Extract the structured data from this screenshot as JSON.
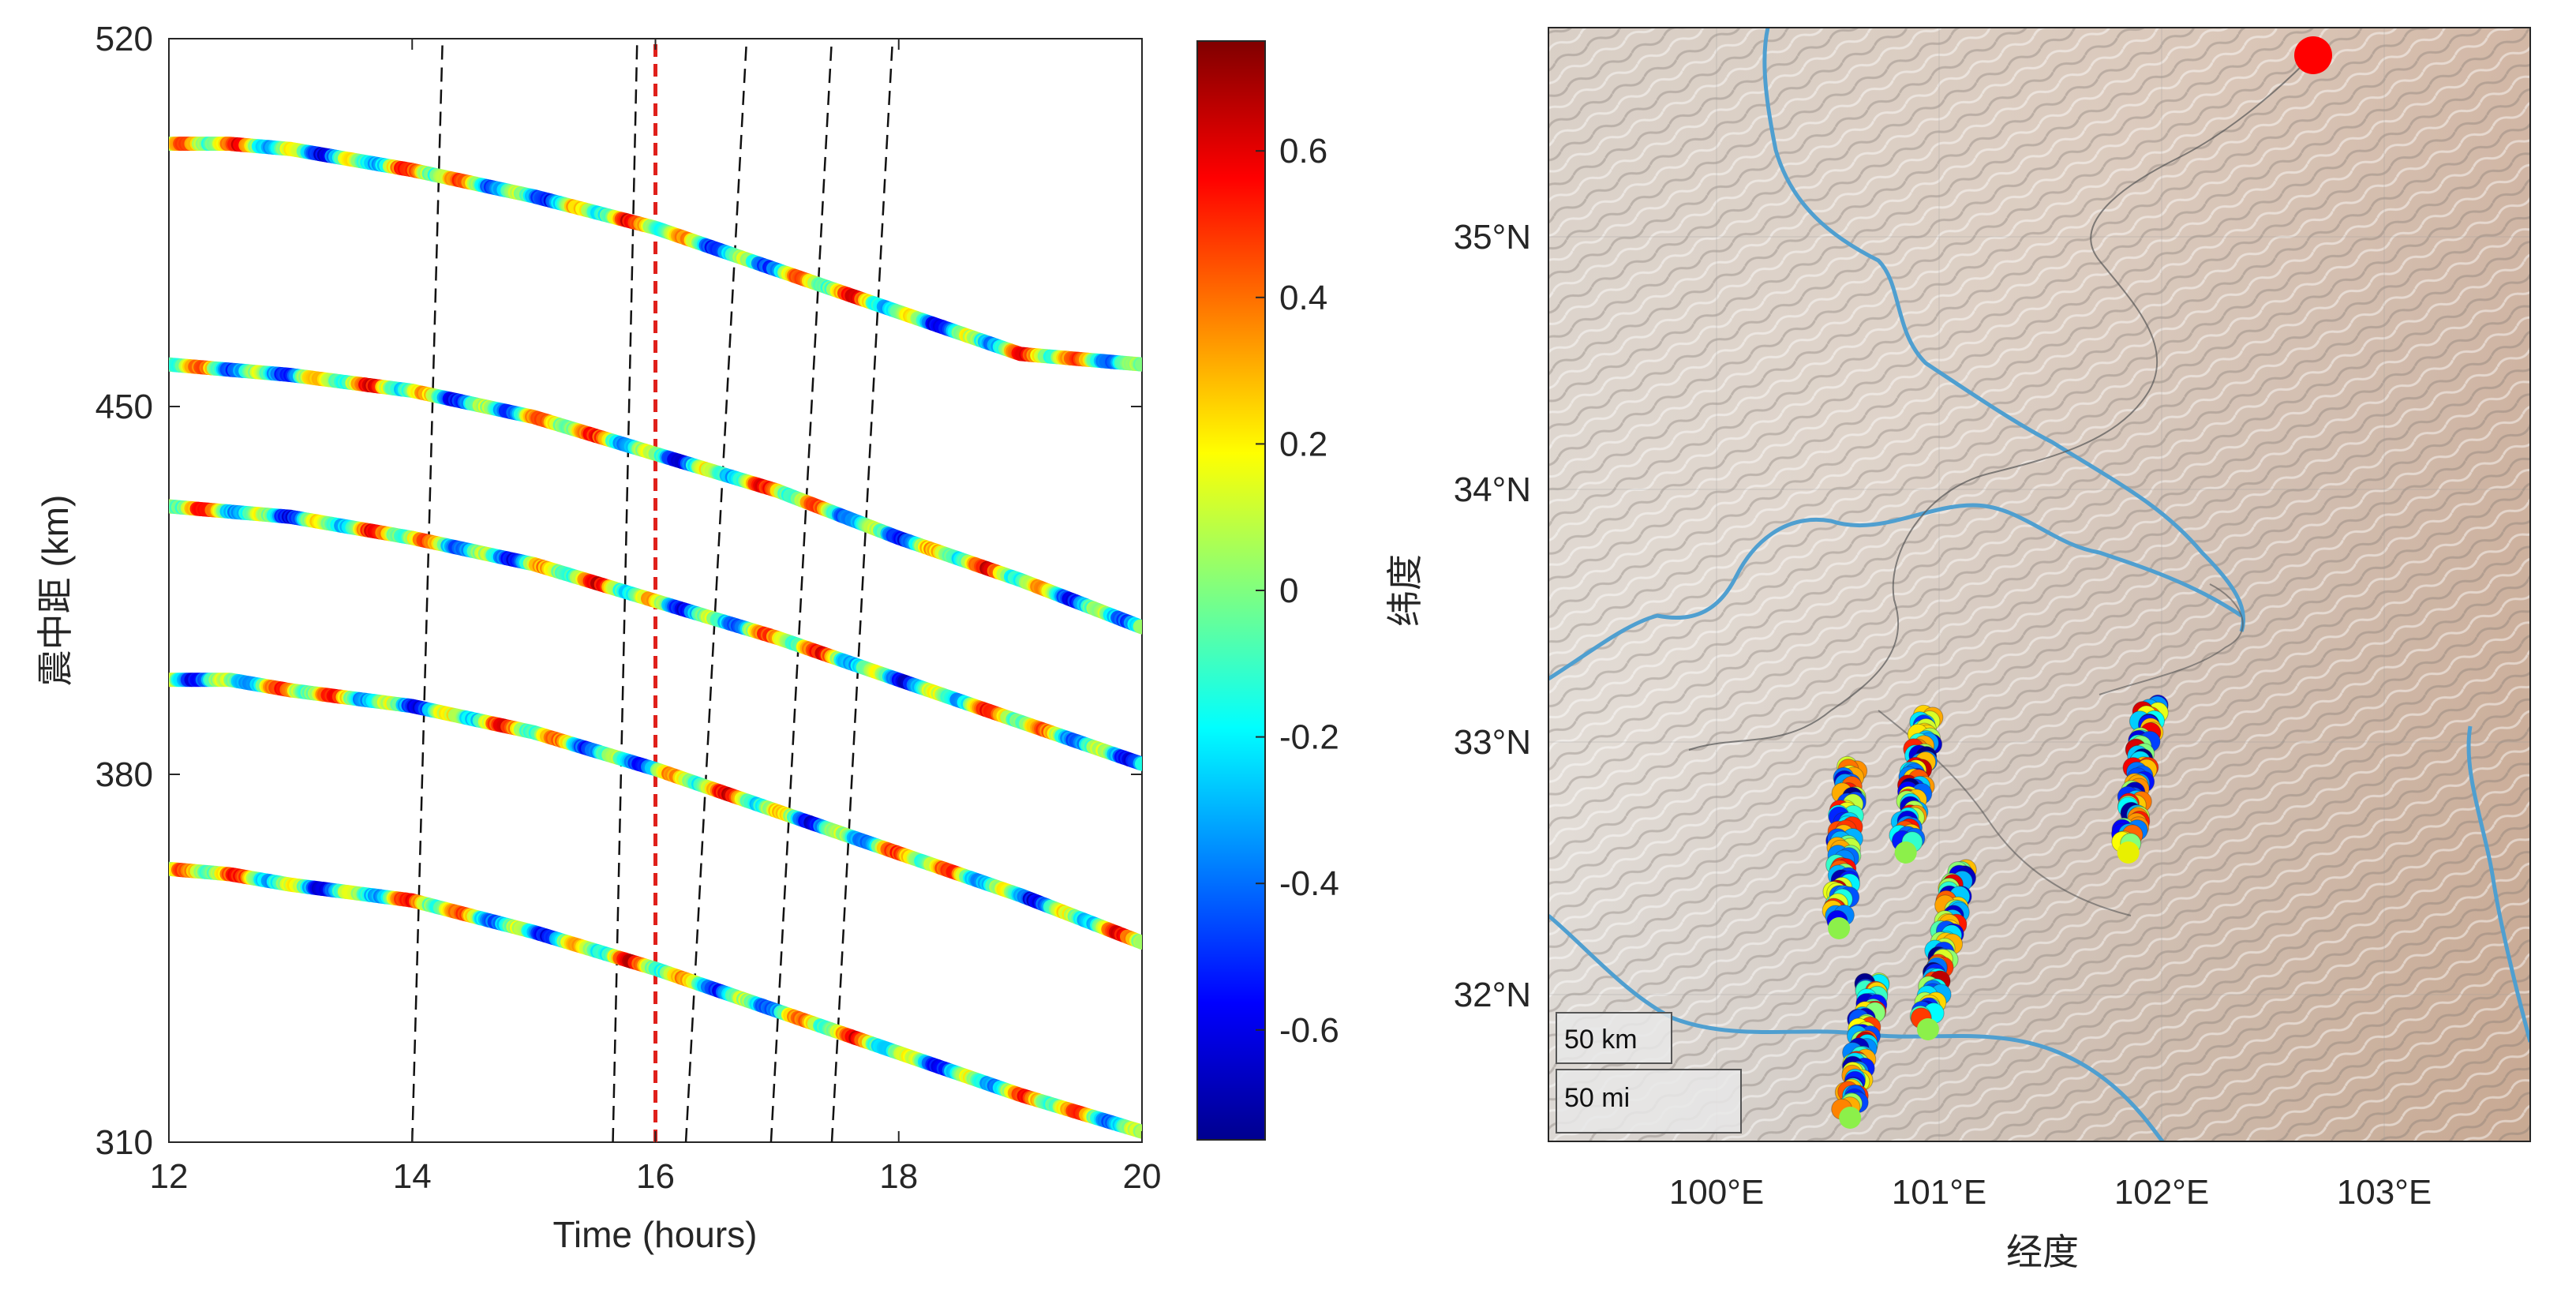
{
  "chart_data": [
    {
      "type": "scatter",
      "xlabel": "Time (hours)",
      "ylabel": "震中距 (km)",
      "xlim": [
        12,
        20
      ],
      "ylim": [
        310,
        520
      ],
      "xticks": [
        12,
        14,
        16,
        18,
        20
      ],
      "yticks": [
        310,
        380,
        450,
        520
      ],
      "colorscale": "jet",
      "clim": [
        -0.75,
        0.75
      ],
      "colorbar_ticks": [
        0.6,
        0.4,
        0.2,
        0,
        -0.2,
        -0.4,
        -0.6
      ],
      "series": [
        {
          "x": [
            12,
            12.5,
            13,
            14,
            15,
            16,
            17,
            18,
            19,
            20
          ],
          "y": [
            500,
            500,
            499,
            495,
            490,
            484,
            476,
            468,
            460,
            458
          ]
        },
        {
          "x": [
            12,
            12.5,
            13,
            14,
            15,
            16,
            17,
            18,
            19,
            20
          ],
          "y": [
            458,
            457,
            456,
            453,
            448,
            441,
            434,
            425,
            417,
            408
          ]
        },
        {
          "x": [
            12,
            12.5,
            13,
            14,
            15,
            16,
            17,
            18,
            19,
            20
          ],
          "y": [
            431,
            430,
            429,
            425,
            420,
            413,
            406,
            398,
            390,
            382
          ]
        },
        {
          "x": [
            12,
            12.5,
            13,
            14,
            15,
            16,
            17,
            18,
            19,
            20
          ],
          "y": [
            398,
            398,
            396,
            393,
            388,
            381,
            373,
            365,
            357,
            348
          ]
        },
        {
          "x": [
            12,
            12.5,
            13,
            14,
            15,
            16,
            17,
            18,
            19,
            20
          ],
          "y": [
            362,
            361,
            359,
            356,
            350,
            343,
            335,
            327,
            319,
            312
          ]
        }
      ],
      "reference_lines": [
        {
          "style": "black-dashed",
          "x_bottom": 14.0,
          "x_top": 14.25
        },
        {
          "style": "black-dashed",
          "x_bottom": 15.65,
          "x_top": 15.85
        },
        {
          "style": "red-dashed",
          "x_bottom": 16.0,
          "x_top": 16.0
        },
        {
          "style": "black-dashed",
          "x_bottom": 16.25,
          "x_top": 16.75
        },
        {
          "style": "black-dashed",
          "x_bottom": 16.95,
          "x_top": 17.45
        },
        {
          "style": "black-dashed",
          "x_bottom": 17.45,
          "x_top": 17.95
        }
      ]
    },
    {
      "type": "map",
      "xlabel": "经度",
      "ylabel": "纬度",
      "lon_ticks": [
        "100°E",
        "101°E",
        "102°E",
        "103°E"
      ],
      "lat_ticks": [
        "35°N",
        "34°N",
        "33°N",
        "32°N"
      ],
      "scale_bars": [
        "50 km",
        "50 mi"
      ],
      "epicenter_marker_color": "#ff0000",
      "tracks": [
        {
          "start": [
            100.6,
            32.9
          ],
          "end": [
            100.55,
            32.3
          ]
        },
        {
          "start": [
            100.95,
            33.1
          ],
          "end": [
            100.85,
            32.6
          ]
        },
        {
          "start": [
            101.1,
            32.5
          ],
          "end": [
            100.95,
            31.9
          ]
        },
        {
          "start": [
            100.7,
            32.05
          ],
          "end": [
            100.6,
            31.55
          ]
        },
        {
          "start": [
            101.95,
            33.15
          ],
          "end": [
            101.85,
            32.6
          ]
        }
      ]
    }
  ]
}
